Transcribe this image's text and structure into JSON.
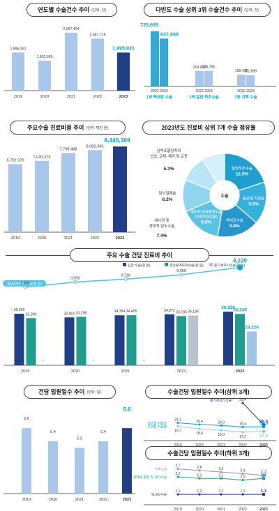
{
  "colors": {
    "dark": "#1f3f86",
    "light": "#a9c7ea",
    "teal": "#1f9e8f",
    "cyan": "#34a8d8",
    "mid": "#2f68b8",
    "pale": "#cfe0f2",
    "grey": "#b9c2cf",
    "axis": "#333",
    "bright": "#00a6d6",
    "line": "#5bc0e0",
    "purple": "#9a8fc8",
    "navy": "#1f3f86"
  },
  "chart_data": [
    {
      "id": "surgery-count",
      "type": "bar",
      "title": "연도별 수술건수 추이",
      "unit": "(단위: 건)",
      "categories": [
        "2019",
        "2020",
        "2021",
        "2022",
        "2023"
      ],
      "values": [
        1996261,
        1953665,
        2097404,
        2067715,
        1995921
      ],
      "labels": [
        "1,996,261",
        "1,953,665",
        "2,097,404",
        "2,067,715",
        "1,995,921"
      ],
      "ylim": [
        1800000,
        2130000
      ]
    },
    {
      "id": "top3-count",
      "type": "bar",
      "title": "다빈도 수술 상위 3위 수술건수 추이",
      "unit": "(단위: 건)",
      "groups": [
        {
          "label": "1위 백내장 수술",
          "years": [
            "2022",
            "2023"
          ],
          "values": [
            735693,
            637849
          ],
          "labels": [
            "735,693",
            "637,849"
          ]
        },
        {
          "label": "2위 일반 척추수술",
          "years": [
            "2022",
            "2023"
          ],
          "values": [
            203902,
            206785
          ],
          "labels": [
            "203,902",
            "206,785"
          ]
        },
        {
          "label": "3위 치핵 수술",
          "years": [
            "2022",
            "2023"
          ],
          "values": [
            156432,
            151899
          ],
          "labels": [
            "156,432",
            "151,899"
          ]
        }
      ],
      "ylim": [
        0,
        780000
      ]
    },
    {
      "id": "cost-trend",
      "type": "bar",
      "title": "주요수술 진료비용 추이",
      "unit": "(단위: 백만 원)",
      "categories": [
        "2019",
        "2020",
        "2021",
        "2022",
        "2023"
      ],
      "values": [
        6702970,
        7020379,
        7798488,
        8082345,
        8440369
      ],
      "labels": [
        "6,702,970",
        "7,020,379",
        "7,798,488",
        "8,082,345",
        "8,440,369"
      ],
      "ylim": [
        0,
        9000000
      ]
    },
    {
      "id": "cost-share",
      "type": "pie",
      "title": "2023년도 진료비 상위 7개 수술 점유율",
      "center": "수술",
      "slices": [
        {
          "label": "일반척추수술",
          "value": 12.0,
          "text": "12.0%"
        },
        {
          "label": "슬관절 치환술",
          "value": 9.9,
          "text": "9.9%"
        },
        {
          "label": "백내장수술",
          "value": 9.8,
          "text": "9.8%"
        },
        {
          "label": "경피적 관상동맥수술 (스텐트삽입술)",
          "value": 9.6,
          "text": "9.6%"
        },
        {
          "label": "내시경 및 경피적 담도수술",
          "value": 7.4,
          "text": "7.4%"
        },
        {
          "label": "담낭절제술",
          "value": 6.2,
          "text": "6.2%"
        },
        {
          "label": "심박조율장치의 삽입, 교체, 제거 및 교정",
          "value": 5.3,
          "text": "5.3%"
        }
      ]
    },
    {
      "id": "cost-per-case",
      "type": "bar",
      "title": "주요 수술 건당 진료비 추이",
      "legend": [
        "심장 수술(천 원)",
        "관상동맥우회수술(천 원)",
        "충기세포이식술(천 원)"
      ],
      "line_legend": "계(34개주요수술)(천 원)",
      "categories": [
        "2019",
        "2020",
        "2021",
        "2022",
        "2023"
      ],
      "series": [
        {
          "name": "심장 수술(천 원)",
          "values": [
            35393,
            32901,
            34354,
            34972,
            36828
          ],
          "labels": [
            "35,393",
            "32,901",
            "34,354",
            "34,972",
            "36,828"
          ]
        },
        {
          "name": "관상동맥우회수술(천 원)",
          "values": [
            32390,
            33298,
            34405,
            33785,
            35249
          ],
          "labels": [
            "32,390",
            "33,298",
            "34,405",
            "33,785",
            "35,249"
          ]
        },
        {
          "name": "충기세포이식술(천 원)",
          "values": [
            null,
            null,
            null,
            34184,
            23229
          ],
          "labels": [
            "",
            "",
            "",
            "34,184",
            "23,229"
          ]
        }
      ],
      "total": {
        "name": "계(34개주요수술)(천 원)",
        "values": [
          3358,
          3593,
          3718,
          3909,
          4229
        ],
        "labels": [
          "3,358",
          "3,593",
          "3,718",
          "3,909",
          "4,229"
        ]
      },
      "ylim": [
        0,
        45000
      ]
    },
    {
      "id": "stay-days",
      "type": "bar",
      "title": "건당 입원일수 추이",
      "unit": "(단위: 일)",
      "categories": [
        "2019",
        "2020",
        "2021",
        "2022",
        "2023"
      ],
      "values": [
        5.6,
        5.4,
        5.3,
        5.4,
        5.6
      ],
      "labels": [
        "5.6",
        "5.4",
        "5.3",
        "5.4",
        "5.6"
      ],
      "ylim": [
        4.6,
        5.9
      ]
    },
    {
      "id": "stay-top3",
      "type": "line",
      "title": "수술건당 입원일수 추이(상위 3개)",
      "categories": [
        "2019",
        "2020",
        "2021",
        "2022",
        "2023"
      ],
      "series": [
        {
          "name": "충기세포이식술",
          "values": [
            null,
            null,
            null,
            29.4,
            20.3
          ],
          "labels": [
            "",
            "",
            "",
            "29.4",
            "20.3"
          ]
        },
        {
          "name": "슬관절 치환술",
          "values": [
            21.1,
            20.4,
            20.0,
            19.4,
            19.5
          ],
          "labels": [
            "21.1",
            "20.4",
            "20.0",
            "19.4",
            "19.5"
          ]
        },
        {
          "name": "고관절 치환술",
          "values": [
            19.7,
            18.6,
            18.0,
            17.2,
            17.5
          ],
          "labels": [
            "19.7",
            "18.6",
            "18.0",
            "17.2",
            "17.5"
          ]
        }
      ]
    },
    {
      "id": "stay-bottom3",
      "type": "line",
      "title": "수술건당 입원일수 추이(하위 3개)",
      "categories": [
        "2019",
        "2020",
        "2021",
        "2022",
        "2023"
      ],
      "series": [
        {
          "name": "치핵수술",
          "values": [
            2.7,
            2.6,
            2.5,
            2.4,
            2.3
          ],
          "labels": [
            "2.7",
            "2.6",
            "2.5",
            "2.4",
            "2.3"
          ]
        },
        {
          "name": "정맥류 결찰 및 제거수술",
          "values": [
            2.2,
            2.1,
            2.1,
            2.0,
            2.1
          ],
          "labels": [
            "2.2",
            "2.1",
            "2.1",
            "2.0",
            "2.1"
          ]
        },
        {
          "name": "백내장수술",
          "values": [
            1.1,
            1.1,
            1.1,
            1.1,
            1.1
          ],
          "labels": [
            "1.1",
            "1.1",
            "1.1",
            "1.1",
            "1.1"
          ]
        }
      ]
    }
  ]
}
